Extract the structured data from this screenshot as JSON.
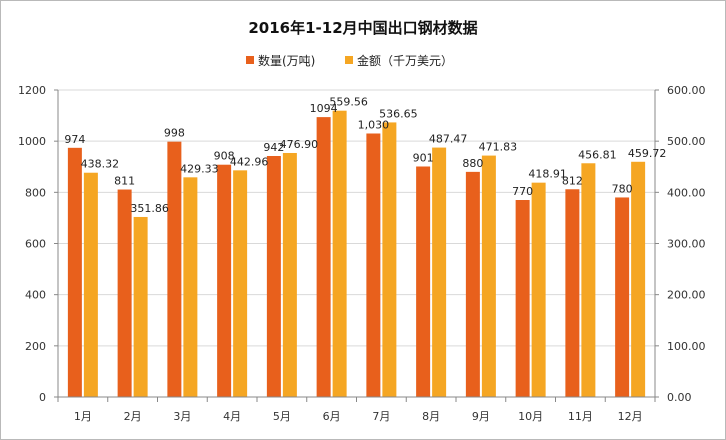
{
  "chart_data": {
    "type": "bar",
    "title": "2016年1-12月中国出口钢材数据",
    "categories": [
      "1月",
      "2月",
      "3月",
      "4月",
      "5月",
      "6月",
      "7月",
      "8月",
      "9月",
      "10月",
      "11月",
      "12月"
    ],
    "series": [
      {
        "name": "数量(万吨)",
        "axis": "left",
        "color": "#E8601C",
        "values": [
          974,
          811,
          998,
          908,
          942,
          1094,
          1030,
          901,
          880,
          770,
          812,
          780
        ],
        "labels": [
          "974",
          "811",
          "998",
          "908",
          "942",
          "1094",
          "1,030",
          "901",
          "880",
          "770",
          "812",
          "780"
        ]
      },
      {
        "name": "金额（千万美元）",
        "axis": "right",
        "color": "#F5A623",
        "values": [
          438.32,
          351.86,
          429.33,
          442.96,
          476.9,
          559.56,
          536.65,
          487.47,
          471.83,
          418.91,
          456.81,
          459.72
        ],
        "labels": [
          "438.32",
          "351.86",
          "429.33",
          "442.96",
          "476.90",
          "559.56",
          "536.65",
          "487.47",
          "471.83",
          "418.91",
          "456.81",
          "459.72"
        ]
      }
    ],
    "ylim_left": [
      0,
      1200
    ],
    "yticks_left": [
      "0",
      "200",
      "400",
      "600",
      "800",
      "1000",
      "1200"
    ],
    "ylim_right": [
      0,
      600
    ],
    "yticks_right": [
      "0.00",
      "100.00",
      "200.00",
      "300.00",
      "400.00",
      "500.00",
      "600.00"
    ],
    "grid": true,
    "legend": "top-center"
  }
}
